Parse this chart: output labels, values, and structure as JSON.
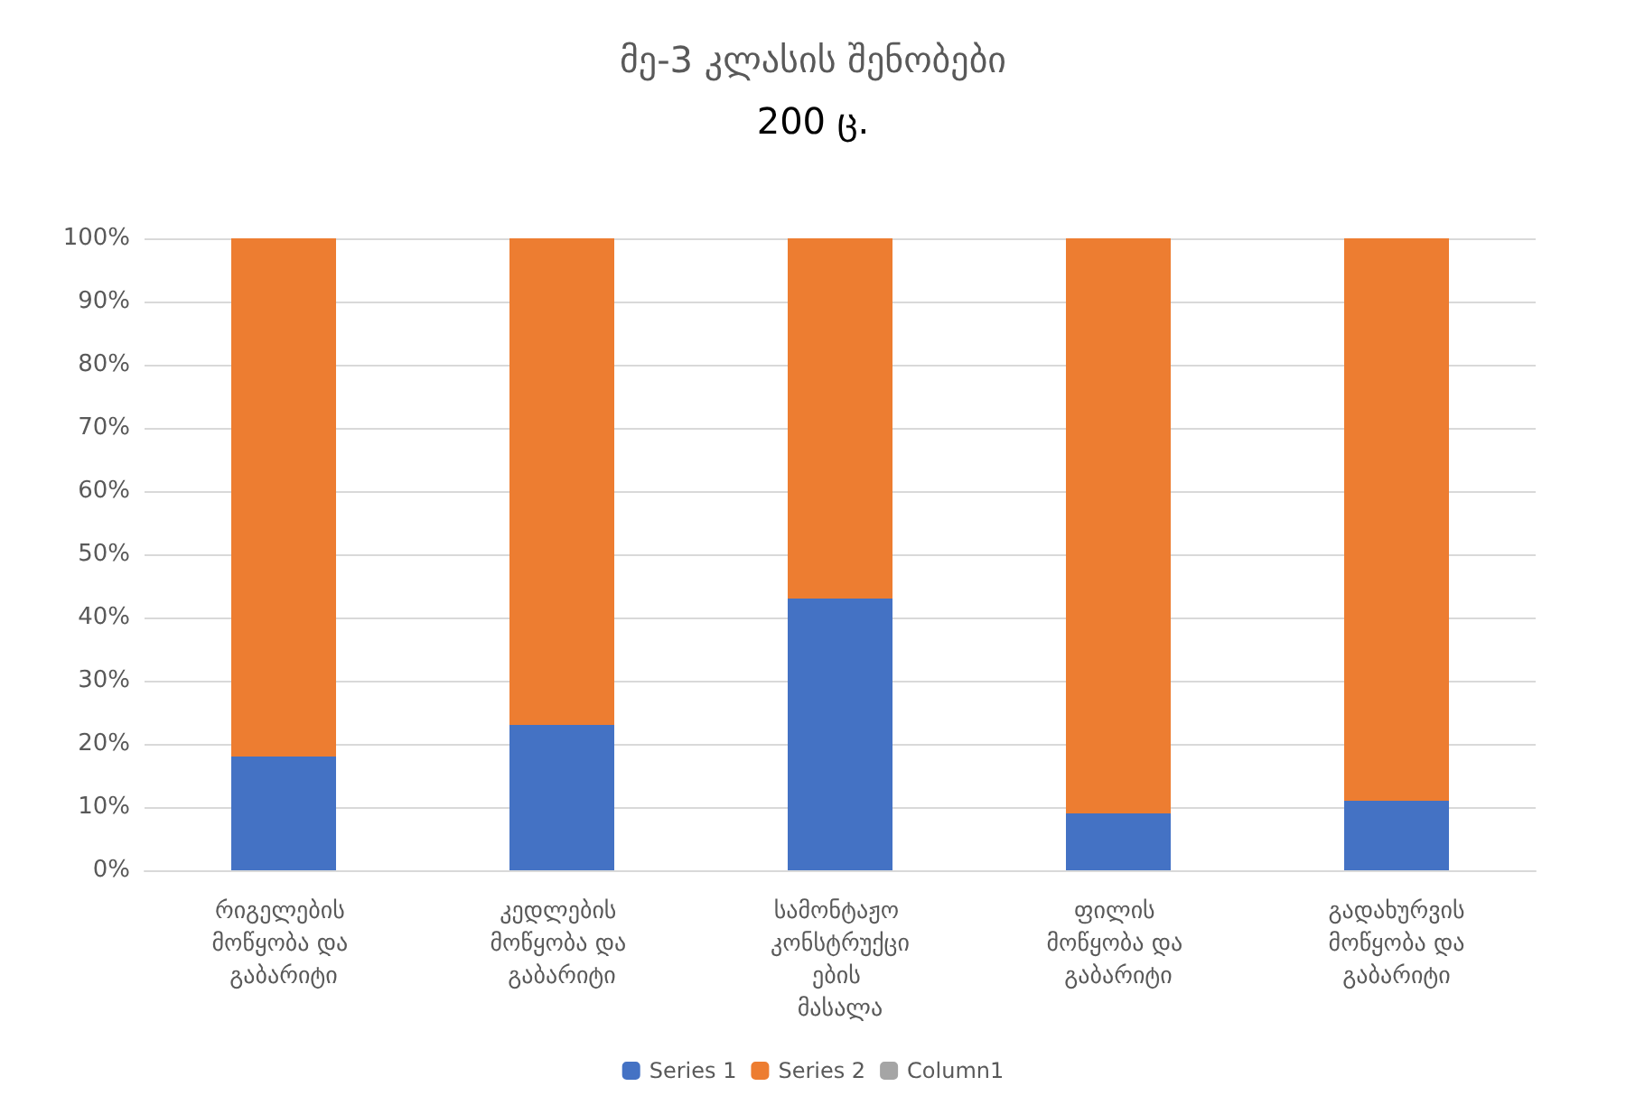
{
  "chart_data": {
    "type": "bar",
    "title": "მე-3 კლასის შენობები",
    "subtitle": "200 ც.",
    "stacked": true,
    "categories": [
      "რიგელების მოწყობა და გაბარიტი",
      "კედლების მოწყობა და გაბარიტი",
      "სამონტაჟო კონსტრუქციების მასალა",
      "ფილის მოწყობა და გაბარიტი",
      "გადახურვის მოწყობა და გაბარიტი"
    ],
    "series": [
      {
        "name": "Series 1",
        "color": "#4472c4",
        "values": [
          18,
          23,
          43,
          9,
          11
        ]
      },
      {
        "name": "Series 2",
        "color": "#ed7d31",
        "values": [
          82,
          77,
          57,
          91,
          89
        ]
      },
      {
        "name": "Column1",
        "color": "#a5a5a5",
        "values": [
          null,
          null,
          null,
          null,
          null
        ]
      }
    ],
    "ylim": [
      0,
      100
    ],
    "yticks": [
      {
        "value": 0,
        "label": "0%"
      },
      {
        "value": 10,
        "label": "10%"
      },
      {
        "value": 20,
        "label": "20%"
      },
      {
        "value": 30,
        "label": "30%"
      },
      {
        "value": 40,
        "label": "40%"
      },
      {
        "value": 50,
        "label": "50%"
      },
      {
        "value": 60,
        "label": "60%"
      },
      {
        "value": 70,
        "label": "70%"
      },
      {
        "value": 80,
        "label": "80%"
      },
      {
        "value": 90,
        "label": "90%"
      },
      {
        "value": 100,
        "label": "100%"
      }
    ],
    "grid": "y",
    "legend": "bottom"
  }
}
